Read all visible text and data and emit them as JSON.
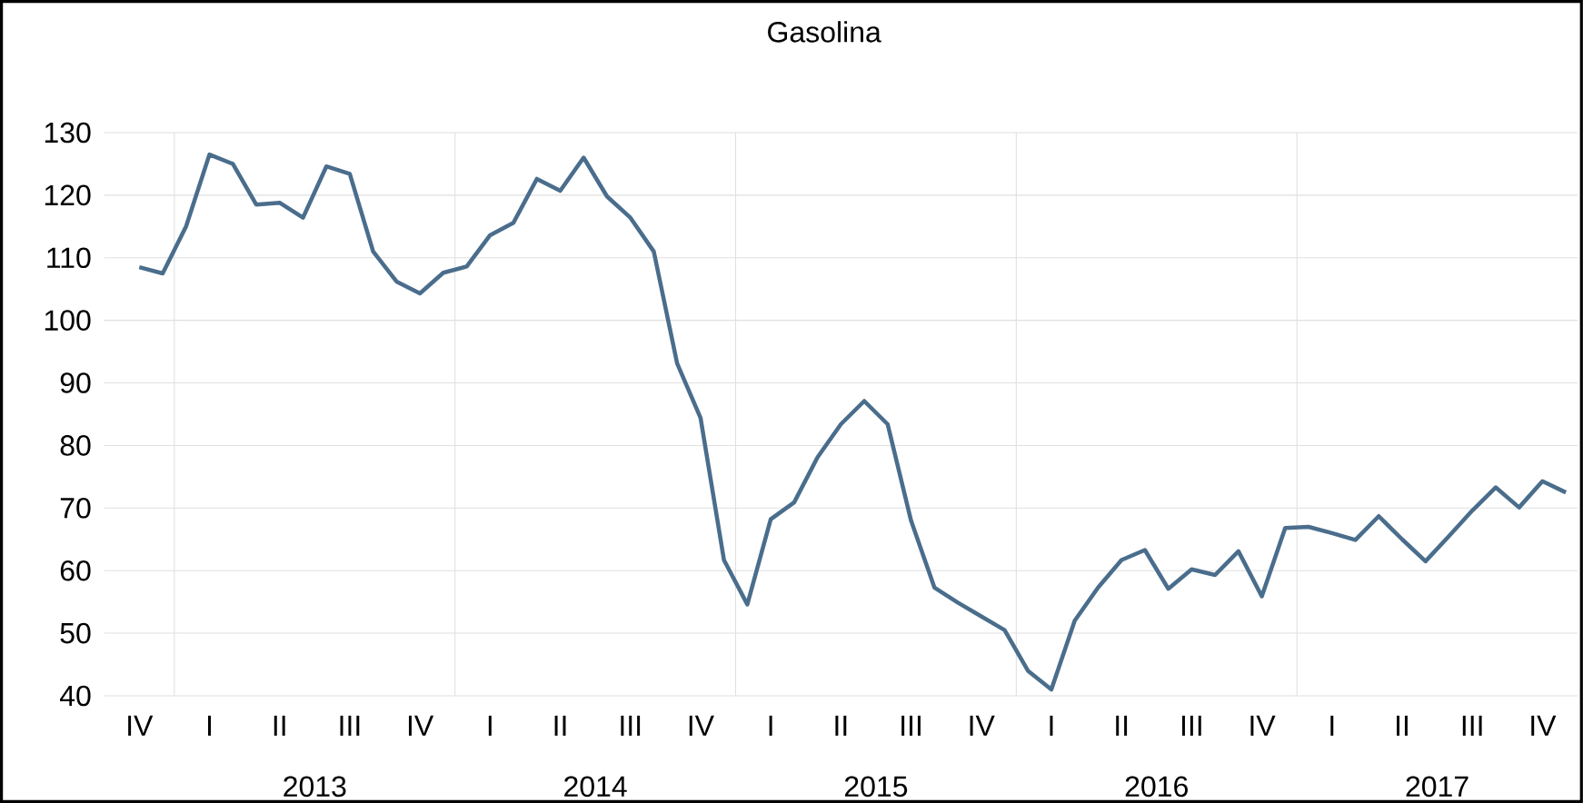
{
  "chart_data": {
    "type": "line",
    "title": "Gasolina",
    "categories": [
      "IV",
      null,
      null,
      "I",
      null,
      null,
      "II",
      null,
      null,
      "III",
      null,
      null,
      "IV",
      null,
      null,
      "I",
      null,
      null,
      "II",
      null,
      null,
      "III",
      null,
      null,
      "IV",
      null,
      null,
      "I",
      null,
      null,
      "II",
      null,
      null,
      "III",
      null,
      null,
      "IV",
      null,
      null,
      "I",
      null,
      null,
      "II",
      null,
      null,
      "III",
      null,
      null,
      "IV",
      null,
      null,
      "I",
      null,
      null,
      "II",
      null,
      null,
      "III",
      null,
      null,
      "IV",
      null
    ],
    "series": [
      {
        "color": "#4a6d8c",
        "values": [
          108.5,
          107.5,
          115,
          126.5,
          125,
          118.5,
          118.8,
          116.4,
          124.6,
          123.4,
          111,
          106.2,
          104.3,
          107.6,
          108.6,
          113.6,
          115.6,
          122.6,
          120.7,
          126,
          119.8,
          116.4,
          111,
          93.1,
          84.4,
          61.7,
          54.6,
          68.2,
          70.9,
          78.1,
          83.4,
          87.1,
          83.4,
          68,
          57.3,
          54.9,
          52.7,
          50.5,
          44,
          41,
          52,
          57.3,
          61.7,
          63.3,
          57.1,
          60.2,
          59.3,
          63.1,
          55.9,
          66.8,
          67,
          66,
          64.9,
          68.7,
          65,
          61.5,
          65.5,
          69.6,
          73.3,
          70.1,
          74.3,
          72.5
        ]
      }
    ],
    "annotations": [
      "2013",
      "2014",
      "2015",
      "2016",
      "2017"
    ],
    "ylim": [
      40,
      130
    ],
    "yticks": [
      40,
      50,
      60,
      70,
      80,
      90,
      100,
      110,
      120,
      130
    ],
    "grid": "y",
    "marker": "none",
    "line_style": "solid"
  }
}
